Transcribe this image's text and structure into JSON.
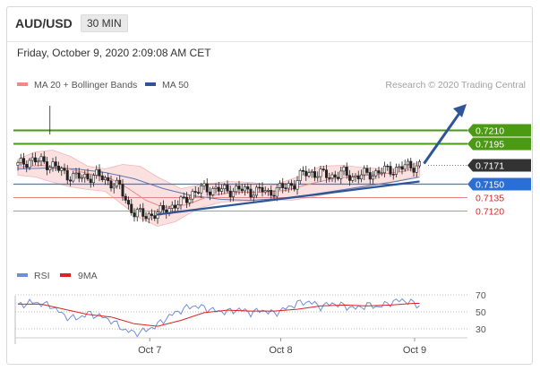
{
  "header": {
    "pair": "AUD/USD",
    "timeframe": "30 MIN"
  },
  "datetime": "Friday, October 9, 2020 2:09:08 AM CET",
  "copyright": "Research © 2020 Trading Central",
  "colors": {
    "bull_line": "#4a9a12",
    "support_line": "#3b7fd0",
    "resistance_line": "#e28585",
    "current": "#333333",
    "trend_arrow": "#2f5597",
    "ma20_legend": "#f08a8a",
    "ma50_legend": "#2f5597",
    "rsi": "#6f8ed8",
    "ma9": "#dd2222"
  },
  "chart_data": [
    {
      "type": "candlestick",
      "legend": [
        {
          "name": "MA 20 + Bollinger Bands",
          "color": "#f08a8a"
        },
        {
          "name": "MA 50",
          "color": "#2f5597"
        }
      ],
      "x_ticks": [
        "Oct 7",
        "Oct 8",
        "Oct 9"
      ],
      "ylim": [
        0.71,
        0.7222
      ],
      "levels": [
        {
          "value": 0.721,
          "label": "0.7210",
          "kind": "target"
        },
        {
          "value": 0.7195,
          "label": "0.7195",
          "kind": "target"
        },
        {
          "value": 0.7171,
          "label": "0.7171",
          "kind": "current"
        },
        {
          "value": 0.715,
          "label": "0.7150",
          "kind": "pivot"
        },
        {
          "value": 0.7135,
          "label": "0.7135",
          "kind": "support"
        },
        {
          "value": 0.712,
          "label": "0.7120",
          "kind": "support"
        }
      ],
      "price_path": [
        [
          0,
          0.7171
        ],
        [
          4,
          0.7177
        ],
        [
          8,
          0.7175
        ],
        [
          12,
          0.7171
        ],
        [
          17,
          0.716
        ],
        [
          22,
          0.7157
        ],
        [
          27,
          0.716
        ],
        [
          32,
          0.7152
        ],
        [
          35,
          0.7146
        ],
        [
          38,
          0.7126
        ],
        [
          40,
          0.7118
        ],
        [
          44,
          0.7115
        ],
        [
          48,
          0.7117
        ],
        [
          52,
          0.7124
        ],
        [
          56,
          0.7129
        ],
        [
          60,
          0.714
        ],
        [
          64,
          0.7145
        ],
        [
          68,
          0.7144
        ],
        [
          72,
          0.7143
        ],
        [
          76,
          0.7144
        ],
        [
          80,
          0.7142
        ],
        [
          84,
          0.7143
        ],
        [
          86,
          0.714
        ],
        [
          88,
          0.7143
        ],
        [
          92,
          0.7147
        ],
        [
          95,
          0.7151
        ],
        [
          98,
          0.7162
        ],
        [
          101,
          0.7163
        ],
        [
          104,
          0.7161
        ],
        [
          108,
          0.7159
        ],
        [
          112,
          0.7162
        ],
        [
          115,
          0.7158
        ],
        [
          118,
          0.716
        ],
        [
          122,
          0.7162
        ],
        [
          126,
          0.7165
        ],
        [
          130,
          0.7167
        ],
        [
          134,
          0.717
        ],
        [
          138,
          0.7171
        ]
      ],
      "ma20": [
        [
          0,
          0.7169
        ],
        [
          8,
          0.7171
        ],
        [
          16,
          0.7168
        ],
        [
          24,
          0.7162
        ],
        [
          32,
          0.7156
        ],
        [
          38,
          0.7145
        ],
        [
          44,
          0.7132
        ],
        [
          50,
          0.7124
        ],
        [
          58,
          0.7127
        ],
        [
          66,
          0.7137
        ],
        [
          74,
          0.7141
        ],
        [
          84,
          0.7141
        ],
        [
          92,
          0.7143
        ],
        [
          100,
          0.715
        ],
        [
          108,
          0.7156
        ],
        [
          116,
          0.7159
        ],
        [
          124,
          0.7161
        ],
        [
          132,
          0.7164
        ],
        [
          138,
          0.7168
        ]
      ],
      "ma50": [
        [
          0,
          0.7167
        ],
        [
          10,
          0.7168
        ],
        [
          20,
          0.7167
        ],
        [
          30,
          0.7163
        ],
        [
          40,
          0.7156
        ],
        [
          50,
          0.7145
        ],
        [
          60,
          0.7137
        ],
        [
          70,
          0.7133
        ],
        [
          80,
          0.7132
        ],
        [
          90,
          0.7134
        ],
        [
          100,
          0.7138
        ],
        [
          110,
          0.7143
        ],
        [
          120,
          0.7148
        ],
        [
          130,
          0.7153
        ],
        [
          138,
          0.7158
        ]
      ],
      "bb_upper": [
        [
          0,
          0.7178
        ],
        [
          6,
          0.7186
        ],
        [
          12,
          0.7188
        ],
        [
          18,
          0.7181
        ],
        [
          24,
          0.717
        ],
        [
          30,
          0.7167
        ],
        [
          36,
          0.7172
        ],
        [
          42,
          0.717
        ],
        [
          48,
          0.7158
        ],
        [
          56,
          0.7145
        ],
        [
          64,
          0.715
        ],
        [
          72,
          0.7153
        ],
        [
          80,
          0.7152
        ],
        [
          88,
          0.7149
        ],
        [
          96,
          0.7158
        ],
        [
          104,
          0.717
        ],
        [
          112,
          0.7171
        ],
        [
          120,
          0.7168
        ],
        [
          128,
          0.7167
        ],
        [
          134,
          0.7171
        ],
        [
          138,
          0.7174
        ]
      ],
      "bb_lower": [
        [
          0,
          0.716
        ],
        [
          6,
          0.7158
        ],
        [
          12,
          0.7152
        ],
        [
          18,
          0.7147
        ],
        [
          24,
          0.7144
        ],
        [
          30,
          0.7142
        ],
        [
          36,
          0.7127
        ],
        [
          42,
          0.7112
        ],
        [
          48,
          0.7103
        ],
        [
          54,
          0.7108
        ],
        [
          62,
          0.7123
        ],
        [
          70,
          0.713
        ],
        [
          78,
          0.7131
        ],
        [
          86,
          0.7133
        ],
        [
          94,
          0.7132
        ],
        [
          100,
          0.7135
        ],
        [
          108,
          0.714
        ],
        [
          116,
          0.7145
        ],
        [
          124,
          0.715
        ],
        [
          132,
          0.7155
        ],
        [
          138,
          0.716
        ]
      ],
      "trendline": [
        [
          43,
          0.7116
        ],
        [
          138,
          0.7153
        ]
      ],
      "arrow": [
        [
          138,
          0.7171
        ],
        [
          152,
          0.7207
        ]
      ]
    },
    {
      "type": "line",
      "legend": [
        {
          "name": "RSI",
          "color": "#6f8ed8"
        },
        {
          "name": "9MA",
          "color": "#dd2222"
        }
      ],
      "y_ticks": [
        70,
        50,
        30
      ],
      "ylim": [
        15,
        75
      ],
      "rsi": [
        [
          0,
          57
        ],
        [
          4,
          61
        ],
        [
          8,
          60
        ],
        [
          12,
          56
        ],
        [
          16,
          45
        ],
        [
          20,
          42
        ],
        [
          24,
          48
        ],
        [
          28,
          45
        ],
        [
          32,
          40
        ],
        [
          36,
          30
        ],
        [
          40,
          25
        ],
        [
          44,
          28
        ],
        [
          48,
          35
        ],
        [
          52,
          45
        ],
        [
          56,
          52
        ],
        [
          60,
          57
        ],
        [
          64,
          55
        ],
        [
          68,
          51
        ],
        [
          72,
          50
        ],
        [
          76,
          53
        ],
        [
          80,
          49
        ],
        [
          84,
          52
        ],
        [
          88,
          48
        ],
        [
          92,
          54
        ],
        [
          96,
          60
        ],
        [
          100,
          62
        ],
        [
          104,
          56
        ],
        [
          108,
          60
        ],
        [
          112,
          57
        ],
        [
          116,
          54
        ],
        [
          120,
          58
        ],
        [
          124,
          56
        ],
        [
          128,
          61
        ],
        [
          132,
          64
        ],
        [
          136,
          60
        ],
        [
          138,
          57
        ]
      ],
      "ma9": [
        [
          0,
          59
        ],
        [
          8,
          59
        ],
        [
          16,
          53
        ],
        [
          24,
          47
        ],
        [
          32,
          44
        ],
        [
          40,
          36
        ],
        [
          48,
          33
        ],
        [
          56,
          40
        ],
        [
          64,
          49
        ],
        [
          72,
          52
        ],
        [
          80,
          51
        ],
        [
          88,
          51
        ],
        [
          96,
          53
        ],
        [
          104,
          57
        ],
        [
          112,
          58
        ],
        [
          120,
          57
        ],
        [
          128,
          58
        ],
        [
          136,
          60
        ],
        [
          138,
          60
        ]
      ]
    }
  ]
}
